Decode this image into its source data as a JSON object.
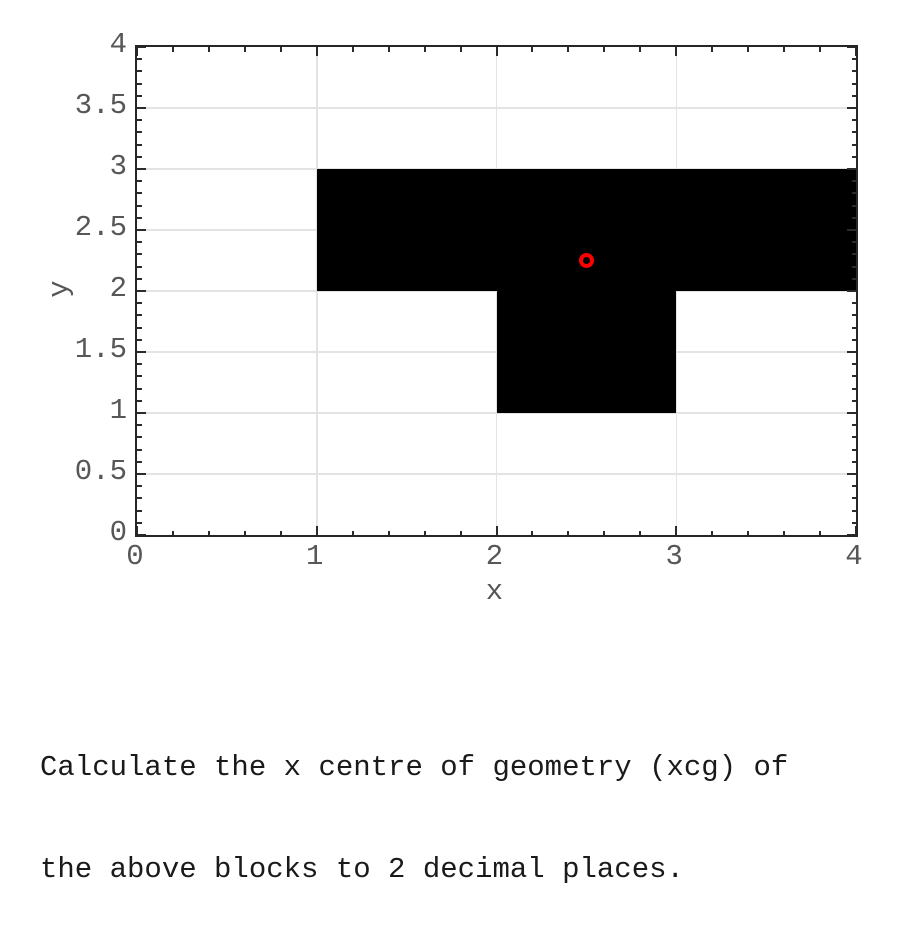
{
  "page": {
    "background": "#ffffff"
  },
  "question": {
    "lines": [
      "Calculate the x centre of geometry (xcg) of",
      "the above blocks to 2 decimal places."
    ]
  },
  "chart_data": {
    "type": "area",
    "title": "",
    "xlabel": "x",
    "ylabel": "y",
    "xlim": [
      0,
      4
    ],
    "ylim": [
      0,
      4
    ],
    "x_major_ticks": [
      0,
      1,
      2,
      3,
      4
    ],
    "y_major_ticks": [
      0,
      0.5,
      1,
      1.5,
      2,
      2.5,
      3,
      3.5,
      4
    ],
    "x_tick_labels": [
      "0",
      "1",
      "2",
      "3",
      "4"
    ],
    "y_tick_labels": [
      "0",
      "0.5",
      "1",
      "1.5",
      "2",
      "2.5",
      "3",
      "3.5",
      "4"
    ],
    "x_minor_step": 0.2,
    "y_minor_step": 0.1,
    "grid": true,
    "tick_direction": "in",
    "ticks_all_sides": true,
    "blocks": [
      {
        "x0": 1,
        "y0": 2,
        "x1": 4,
        "y1": 3
      },
      {
        "x0": 2,
        "y0": 1,
        "x1": 3,
        "y1": 2
      }
    ],
    "marker": {
      "x": 2.5,
      "y": 2.25,
      "shape": "circle-outline"
    },
    "colors": {
      "grid": "#e3e3e3",
      "spine": "#262626",
      "tick_mark": "#2b2b2b",
      "tick_label": "#575757",
      "axis_label": "#575757",
      "block": "#000000",
      "marker": "#ff0000"
    }
  }
}
